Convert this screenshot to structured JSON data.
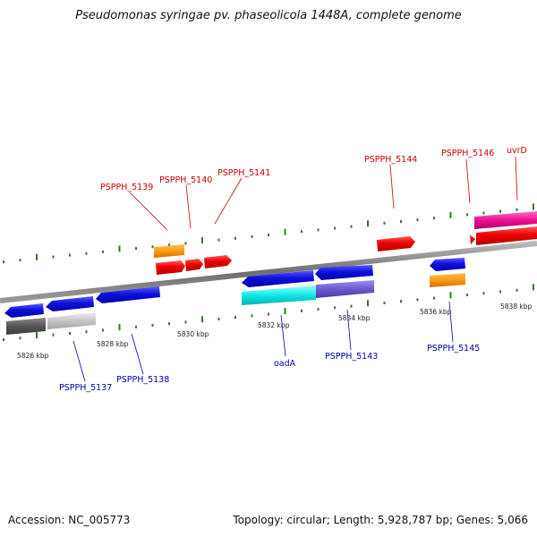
{
  "title": "Pseudomonas syringae pv. phaseolicola 1448A, complete genome",
  "footer": {
    "accession": "Accession: NC_005773",
    "topology": "Topology: circular; Length: 5,928,787 bp; Genes: 5,066"
  },
  "colors": {
    "backbone": "#888888",
    "tick": "#2e7d1e",
    "forward_label": "#cc0000",
    "reverse_label": "#0000aa"
  },
  "scale_labels": [
    "5826 kbp",
    "5828 kbp",
    "5830 kbp",
    "5832 kbp",
    "5834 kbp",
    "5836 kbp",
    "5838 kbp"
  ],
  "forward_gene_labels": [
    "PSPPH_5139",
    "PSPPH_5140",
    "PSPPH_5141",
    "PSPPH_5144",
    "PSPPH_5146",
    "uvrD"
  ],
  "reverse_gene_labels": [
    "PSPPH_5137",
    "PSPPH_5138",
    "oadA",
    "PSPPH_5143",
    "PSPPH_5145"
  ]
}
